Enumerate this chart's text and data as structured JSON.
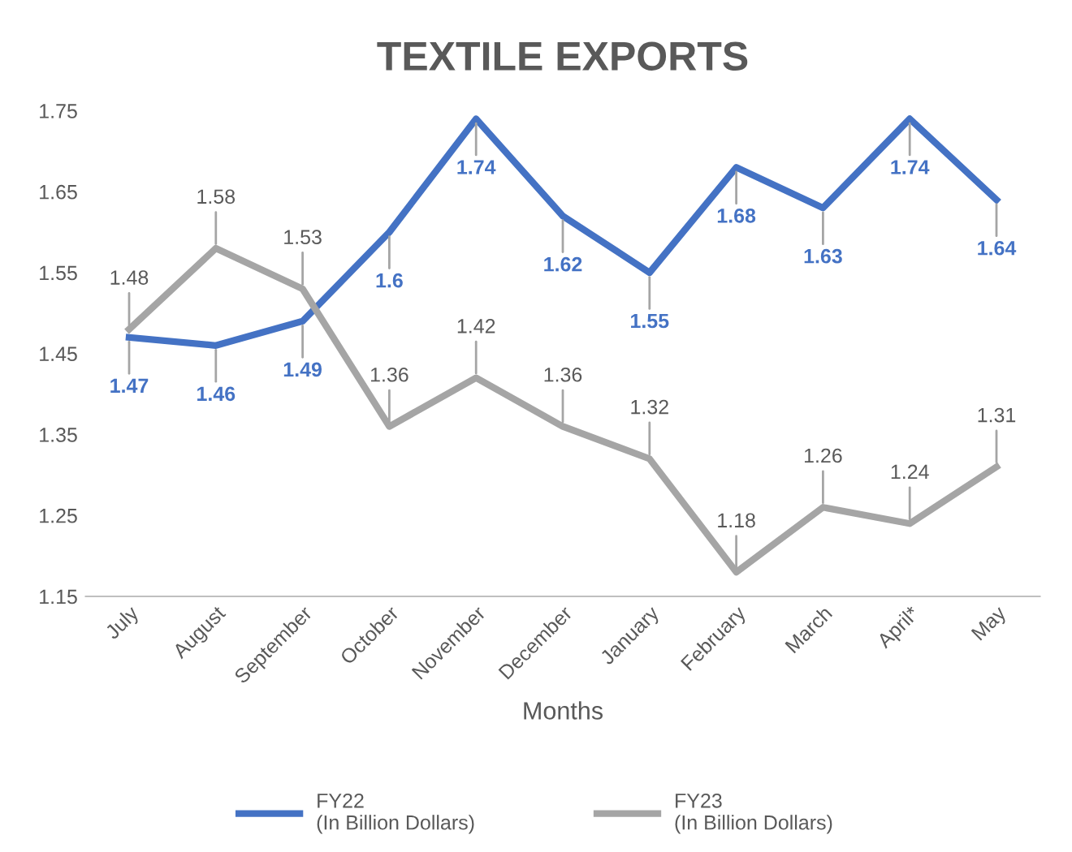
{
  "chart_data": {
    "type": "line",
    "title": "TEXTILE EXPORTS",
    "xlabel": "Months",
    "categories": [
      "July",
      "August",
      "September",
      "October",
      "November",
      "December",
      "January",
      "February",
      "March",
      "April*",
      "May"
    ],
    "series": [
      {
        "name": "FY22\n(In Billion Dollars)",
        "color": "#4472c4",
        "values": [
          1.47,
          1.46,
          1.49,
          1.6,
          1.74,
          1.62,
          1.55,
          1.68,
          1.63,
          1.74,
          1.64
        ]
      },
      {
        "name": "FY23\n(In Billion Dollars)",
        "color": "#a5a5a5",
        "values": [
          1.48,
          1.58,
          1.53,
          1.36,
          1.42,
          1.36,
          1.32,
          1.18,
          1.26,
          1.24,
          1.31
        ]
      }
    ],
    "ylim": [
      1.15,
      1.75
    ],
    "yticks": [
      1.15,
      1.25,
      1.35,
      1.45,
      1.55,
      1.65,
      1.75
    ],
    "data_labels": true,
    "legend": "bottom",
    "grid": false,
    "marker": "none",
    "line_style": "solid"
  }
}
